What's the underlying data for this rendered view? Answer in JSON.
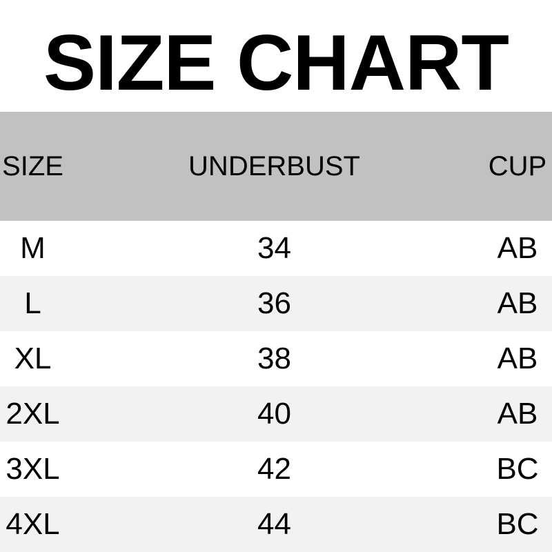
{
  "title": "SIZE CHART",
  "colors": {
    "header_bg": "#c1c1c1",
    "row_bg": "#ffffff",
    "row_alt_bg": "#f2f2f2",
    "text": "#000000",
    "page_bg": "#ffffff"
  },
  "table": {
    "columns": [
      "SIZE",
      "UNDERBUST",
      "CUP"
    ],
    "rows": [
      {
        "size": "M",
        "underbust": "34",
        "cup": "AB"
      },
      {
        "size": "L",
        "underbust": "36",
        "cup": "AB"
      },
      {
        "size": "XL",
        "underbust": "38",
        "cup": "AB"
      },
      {
        "size": "2XL",
        "underbust": "40",
        "cup": "AB"
      },
      {
        "size": "3XL",
        "underbust": "42",
        "cup": "BC"
      },
      {
        "size": "4XL",
        "underbust": "44",
        "cup": "BC"
      }
    ]
  },
  "chart_data": {
    "type": "table",
    "title": "SIZE CHART",
    "columns": [
      "SIZE",
      "UNDERBUST",
      "CUP"
    ],
    "rows": [
      [
        "M",
        "34",
        "AB"
      ],
      [
        "L",
        "36",
        "AB"
      ],
      [
        "XL",
        "38",
        "AB"
      ],
      [
        "2XL",
        "40",
        "AB"
      ],
      [
        "3XL",
        "42",
        "BC"
      ],
      [
        "4XL",
        "44",
        "BC"
      ]
    ],
    "layout": {
      "header_background": "#c1c1c1",
      "zebra_striping": true,
      "column_alignment": [
        "center-left",
        "center",
        "center-right"
      ]
    }
  }
}
